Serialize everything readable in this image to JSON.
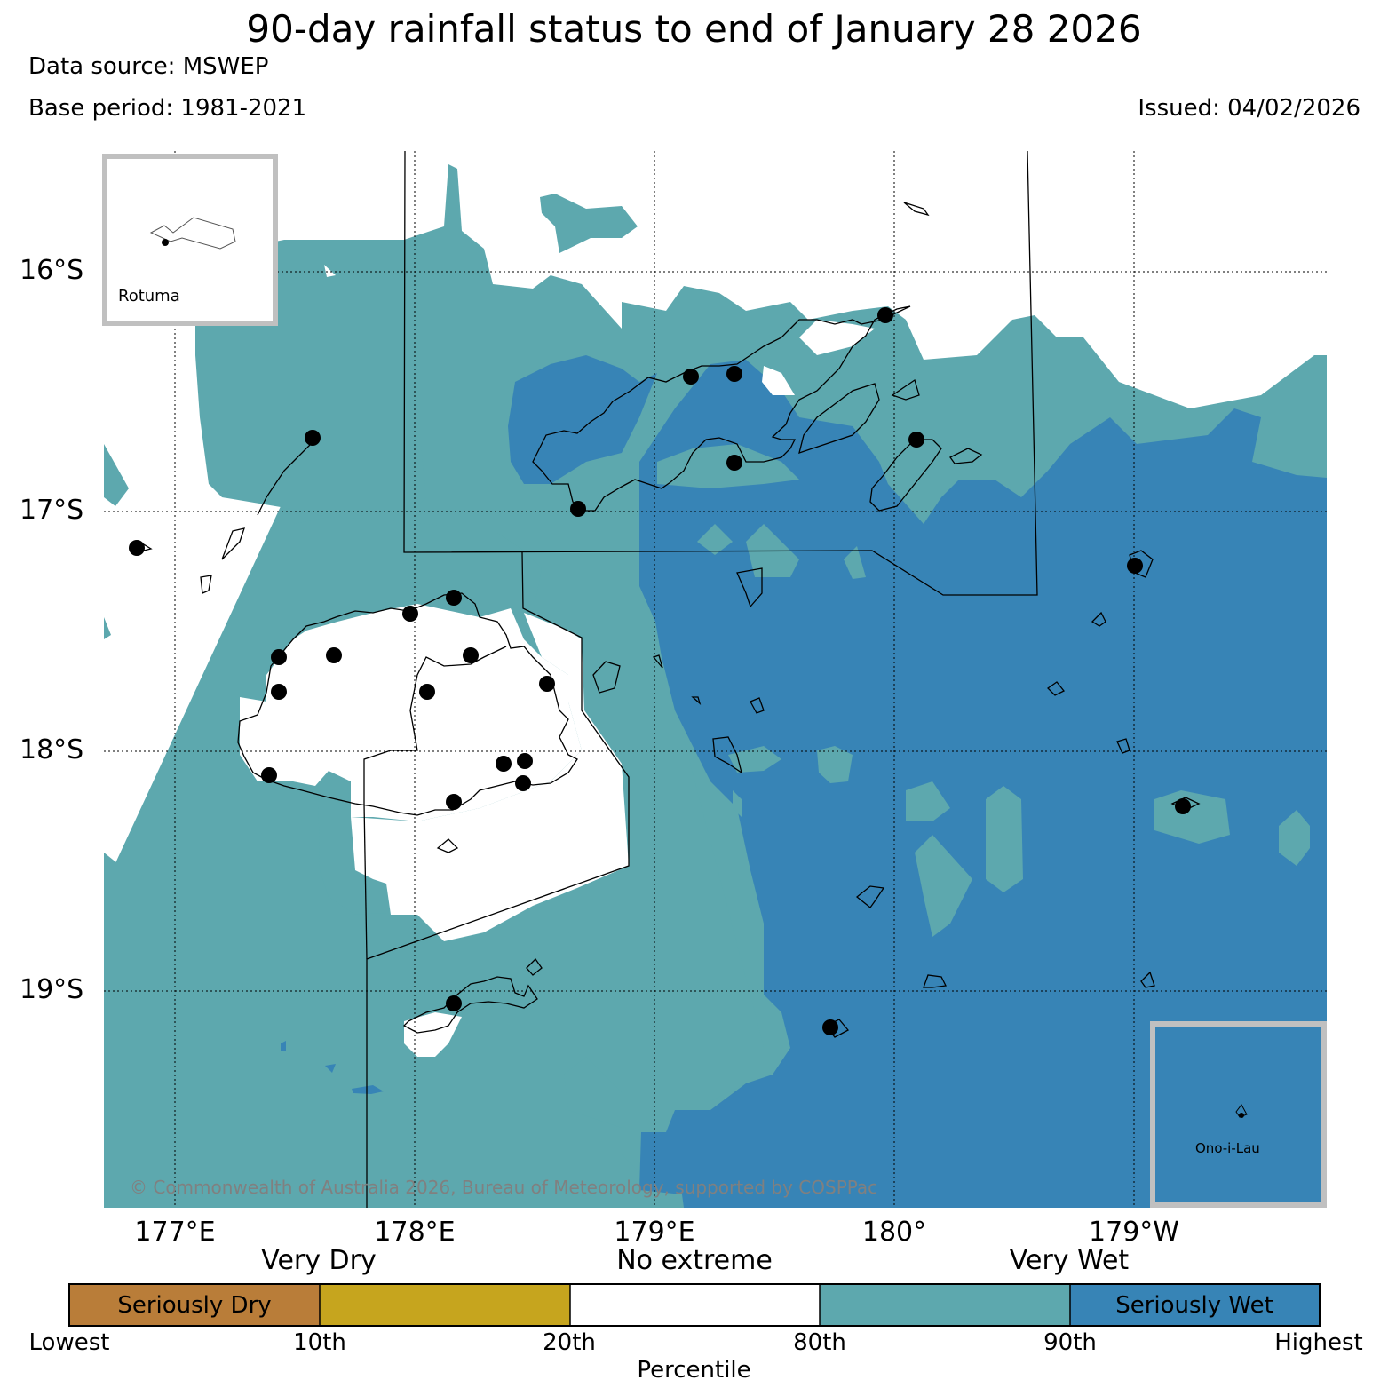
{
  "header": {
    "title": "90-day rainfall status to end of January 28 2026",
    "data_source": "Data source: MSWEP",
    "base_period": "Base period: 1981-2021",
    "issued": "Issued: 04/02/2026"
  },
  "map": {
    "lat_labels": [
      "16°S",
      "17°S",
      "18°S",
      "19°S"
    ],
    "lon_labels": [
      "177°E",
      "178°E",
      "179°E",
      "180°",
      "179°W"
    ],
    "copyright": "© Commonwealth of Australia 2026, Bureau of Meteorology, supported by COSPPac",
    "insets": {
      "rotuma": "Rotuma",
      "ono_i_lau": "Ono-i-Lau"
    },
    "colors": {
      "seriously_dry": "#b97d39",
      "very_dry": "#c6a51e",
      "no_extreme": "#ffffff",
      "very_wet": "#5da8ae",
      "seriously_wet": "#3784b6",
      "inset_border": "#c0c0c0"
    }
  },
  "legend": {
    "category_labels": [
      "Very Dry",
      "No extreme",
      "Very Wet"
    ],
    "segments": [
      "Seriously Dry",
      "",
      "",
      "",
      "Seriously Wet"
    ],
    "ticks": [
      "Lowest",
      "10th",
      "20th",
      "80th",
      "90th",
      "Highest"
    ],
    "axis_label": "Percentile"
  }
}
